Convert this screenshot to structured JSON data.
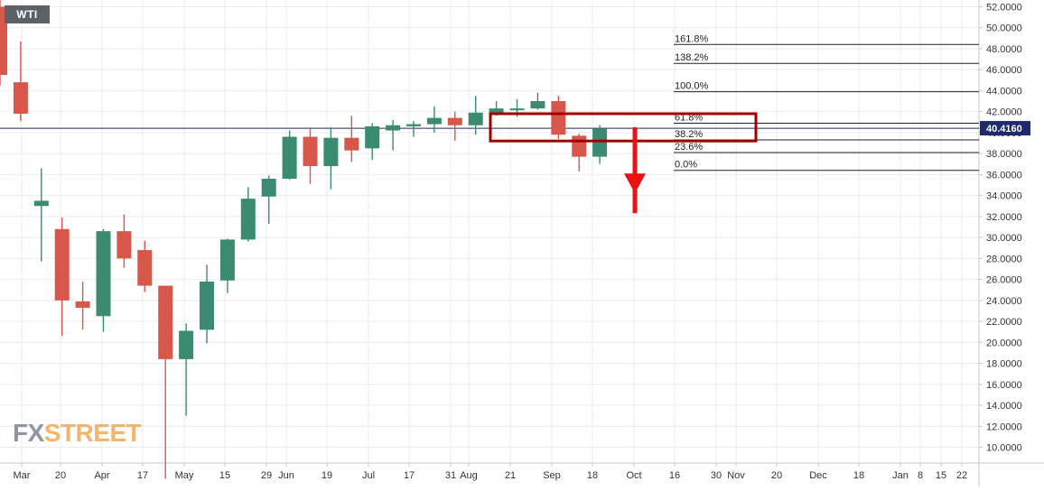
{
  "symbol": "WTI",
  "logo": {
    "fx": "FX",
    "street": "STREET"
  },
  "colors": {
    "up": "#3b8a72",
    "down": "#d7584a",
    "grid": "#e9ebee",
    "axis": "#c7c9cc",
    "price_line": "#1f2a6b",
    "zone": "#9e0000",
    "arrow": "#ee1111",
    "fib": "#222222",
    "badge_bg": "#1f2a6b"
  },
  "chart_data": {
    "type": "candlestick",
    "title": "WTI",
    "y_unit": "USD",
    "ylim": [
      8.5,
      52.5
    ],
    "y_ticks": [
      10,
      12,
      14,
      16,
      18,
      20,
      22,
      24,
      26,
      28,
      30,
      32,
      34,
      36,
      38,
      40,
      42,
      44,
      46,
      48,
      50,
      52
    ],
    "y_tick_labels": [
      "10.0000",
      "12.0000",
      "14.0000",
      "16.0000",
      "18.0000",
      "20.0000",
      "22.0000",
      "24.0000",
      "26.0000",
      "28.0000",
      "30.0000",
      "32.0000",
      "34.0000",
      "36.0000",
      "38.0000",
      "40.0000",
      "42.0000",
      "44.0000",
      "46.0000",
      "48.0000",
      "50.0000",
      "52.0000"
    ],
    "x_tick_labels": [
      "Mar",
      "20",
      "Apr",
      "17",
      "May",
      "15",
      "29",
      "Jun",
      "19",
      "Jul",
      "17",
      "31",
      "Aug",
      "21",
      "Sep",
      "18",
      "Oct",
      "16",
      "30",
      "Nov",
      "20",
      "Dec",
      "18",
      "Jan",
      "8",
      "15",
      "22"
    ],
    "candles": [
      {
        "o": 52.0,
        "h": 53.0,
        "l": 44.5,
        "c": 45.5
      },
      {
        "o": 44.8,
        "h": 48.7,
        "l": 41.1,
        "c": 41.8
      },
      {
        "o": 33.0,
        "h": 36.6,
        "l": 27.7,
        "c": 33.5
      },
      {
        "o": 30.8,
        "h": 31.9,
        "l": 20.6,
        "c": 24.0
      },
      {
        "o": 23.9,
        "h": 25.8,
        "l": 21.2,
        "c": 23.3
      },
      {
        "o": 22.5,
        "h": 30.8,
        "l": 21.0,
        "c": 30.6
      },
      {
        "o": 30.6,
        "h": 32.2,
        "l": 27.1,
        "c": 28.0
      },
      {
        "o": 28.8,
        "h": 29.7,
        "l": 24.8,
        "c": 25.4
      },
      {
        "o": 25.4,
        "h": 25.4,
        "l": 7.0,
        "c": 18.4
      },
      {
        "o": 18.4,
        "h": 21.8,
        "l": 13.0,
        "c": 21.1
      },
      {
        "o": 21.2,
        "h": 27.4,
        "l": 19.9,
        "c": 25.8
      },
      {
        "o": 25.9,
        "h": 29.9,
        "l": 24.7,
        "c": 29.8
      },
      {
        "o": 29.8,
        "h": 34.8,
        "l": 29.6,
        "c": 33.7
      },
      {
        "o": 33.9,
        "h": 35.9,
        "l": 31.3,
        "c": 35.6
      },
      {
        "o": 35.6,
        "h": 40.2,
        "l": 35.5,
        "c": 39.6
      },
      {
        "o": 39.6,
        "h": 40.5,
        "l": 35.1,
        "c": 36.8
      },
      {
        "o": 36.8,
        "h": 40.5,
        "l": 34.6,
        "c": 39.5
      },
      {
        "o": 39.5,
        "h": 41.6,
        "l": 37.2,
        "c": 38.3
      },
      {
        "o": 38.5,
        "h": 40.9,
        "l": 37.4,
        "c": 40.6
      },
      {
        "o": 40.2,
        "h": 41.2,
        "l": 38.3,
        "c": 40.7
      },
      {
        "o": 40.6,
        "h": 41.1,
        "l": 39.6,
        "c": 40.8
      },
      {
        "o": 40.8,
        "h": 42.5,
        "l": 40.0,
        "c": 41.4
      },
      {
        "o": 41.4,
        "h": 42.0,
        "l": 39.2,
        "c": 40.7
      },
      {
        "o": 40.7,
        "h": 43.5,
        "l": 39.8,
        "c": 41.9
      },
      {
        "o": 41.9,
        "h": 43.0,
        "l": 41.6,
        "c": 42.3
      },
      {
        "o": 42.3,
        "h": 43.2,
        "l": 41.5,
        "c": 42.3
      },
      {
        "o": 42.3,
        "h": 43.8,
        "l": 42.2,
        "c": 43.0
      },
      {
        "o": 43.0,
        "h": 43.5,
        "l": 39.4,
        "c": 39.8
      },
      {
        "o": 39.7,
        "h": 39.9,
        "l": 36.3,
        "c": 37.7
      },
      {
        "o": 37.7,
        "h": 40.7,
        "l": 37.0,
        "c": 40.4
      }
    ],
    "last_price": "40.4160",
    "fibonacci": [
      {
        "label": "161.8%",
        "price": 48.4
      },
      {
        "label": "138.2%",
        "price": 46.6
      },
      {
        "label": "100.0%",
        "price": 43.9
      },
      {
        "label": "61.8%",
        "price": 40.9
      },
      {
        "label": "38.2%",
        "price": 39.3
      },
      {
        "label": "23.6%",
        "price": 38.1
      },
      {
        "label": "0.0%",
        "price": 36.4
      }
    ],
    "zone": {
      "top": 41.8,
      "bottom": 39.2
    },
    "arrow": {
      "from": 40.5,
      "to": 34.2
    },
    "grid": true
  }
}
